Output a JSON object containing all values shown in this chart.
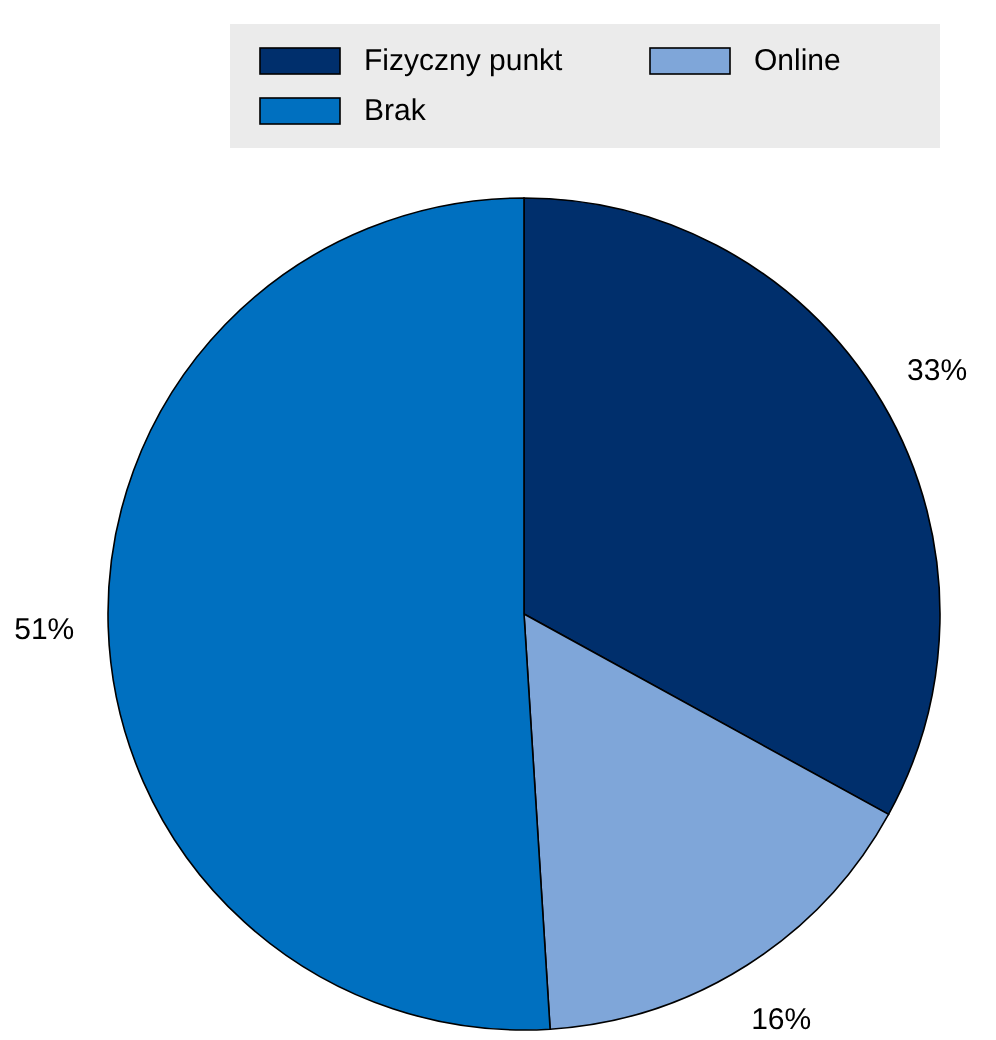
{
  "chart_data": {
    "type": "pie",
    "categories": [
      "Fizyczny punkt",
      "Online",
      "Brak"
    ],
    "values": [
      33,
      16,
      51
    ],
    "value_labels": [
      "33%",
      "16%",
      "51%"
    ],
    "colors": [
      "#002f6c",
      "#7fa6d9",
      "#0070c0"
    ],
    "legend": "top"
  }
}
